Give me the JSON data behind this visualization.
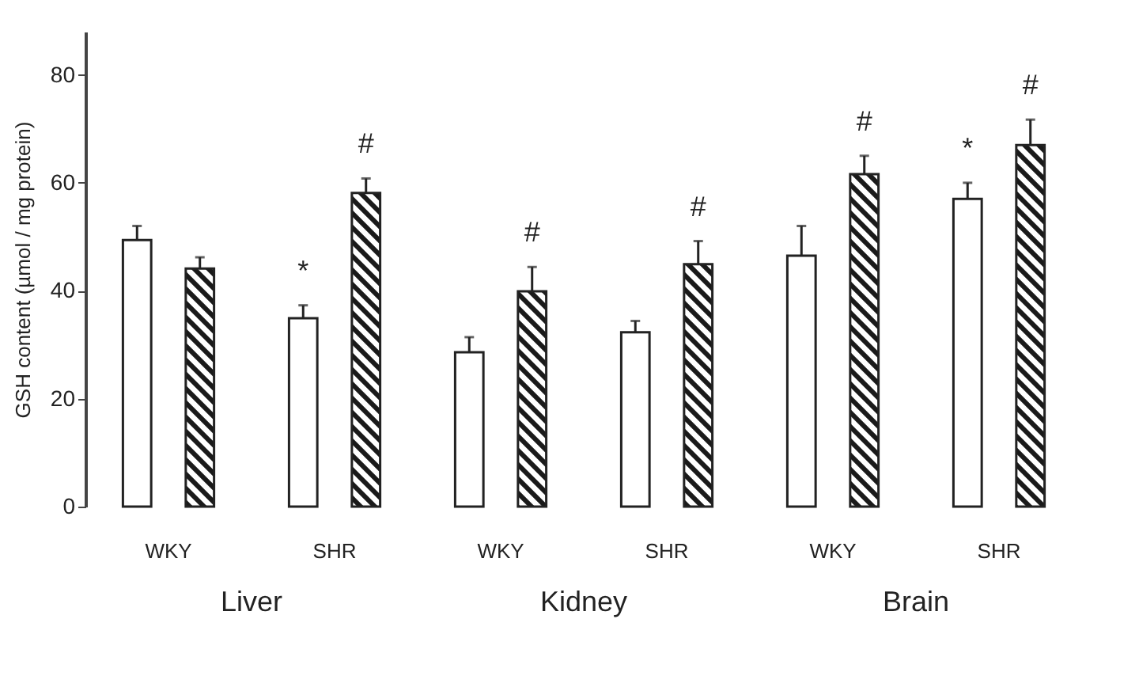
{
  "chart_data": {
    "type": "bar",
    "ylabel": "GSH content (µmol / mg protein)",
    "categories": [
      "WKY",
      "SHR",
      "WKY",
      "SHR",
      "WKY",
      "SHR"
    ],
    "series": [
      {
        "color": "#ffffff",
        "values": [
          49.4,
          34.9,
          28.6,
          32.3,
          46.5,
          57.0
        ],
        "errors": [
          2.6,
          2.4,
          2.8,
          2.1,
          5.5,
          3.0
        ],
        "value_labels": [
          null,
          "*",
          null,
          null,
          null,
          "*"
        ]
      },
      {
        "color": "#1a1a1a",
        "values": [
          44.1,
          58.1,
          39.9,
          44.9,
          61.6,
          67.0
        ],
        "errors": [
          2.1,
          2.7,
          4.5,
          4.3,
          3.4,
          4.7
        ],
        "value_labels": [
          null,
          "#",
          "#",
          "#",
          "#",
          "#"
        ]
      }
    ],
    "ylim": [
      0,
      88
    ],
    "yticks": [
      0,
      20,
      40,
      60,
      80
    ],
    "grid": false,
    "legend": false,
    "annotations": [
      "Liver",
      "Kidney",
      "Brain"
    ]
  }
}
